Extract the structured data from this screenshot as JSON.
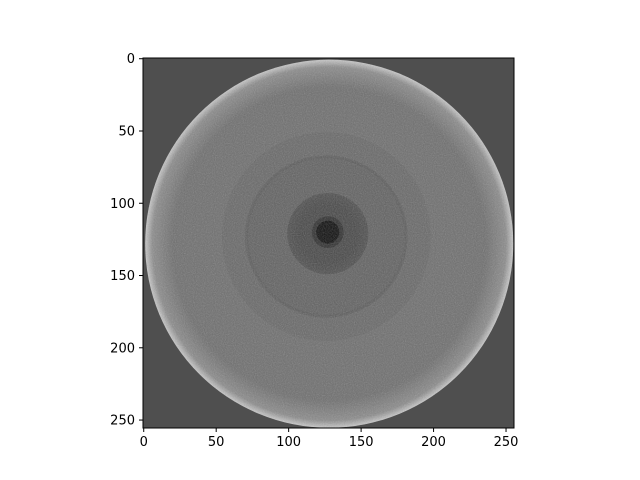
{
  "chart_data": {
    "type": "heatmap",
    "description_kind": "grayscale image (imshow) of a circular cross-section",
    "title": "",
    "xlabel": "",
    "ylabel": "",
    "xlim": [
      0,
      255
    ],
    "ylim": [
      255,
      0
    ],
    "image_width": 256,
    "image_height": 256,
    "x_ticks": [
      0,
      50,
      100,
      150,
      200,
      250
    ],
    "x_tick_labels": [
      "0",
      "50",
      "100",
      "150",
      "200",
      "250"
    ],
    "y_ticks": [
      0,
      50,
      100,
      150,
      200,
      250
    ],
    "y_tick_labels": [
      "0",
      "50",
      "100",
      "150",
      "200",
      "250"
    ],
    "colormap": "gray",
    "grid": false,
    "colors": {
      "background_outside_circle": "#4f4f4f",
      "disk_main": "#6d6d6d",
      "rim_highlight": "#c8c8c8",
      "inner_ring_region": "#5f5f5f",
      "dark_annulus": "#464646",
      "core_ring": "#2e2e2e",
      "core_center": "#0c0c0c"
    },
    "disk": {
      "center_x": 128,
      "center_y": 128,
      "radius": 127
    },
    "rings": [
      {
        "name": "faint-outer-ring",
        "center_x": 126,
        "center_y": 123,
        "radius": 72
      },
      {
        "name": "mid-ring",
        "center_x": 126,
        "center_y": 123,
        "radius": 55
      },
      {
        "name": "dark-annulus",
        "center_x": 127,
        "center_y": 121,
        "radius": 28
      },
      {
        "name": "core",
        "center_x": 127,
        "center_y": 120,
        "radius": 11
      }
    ]
  }
}
